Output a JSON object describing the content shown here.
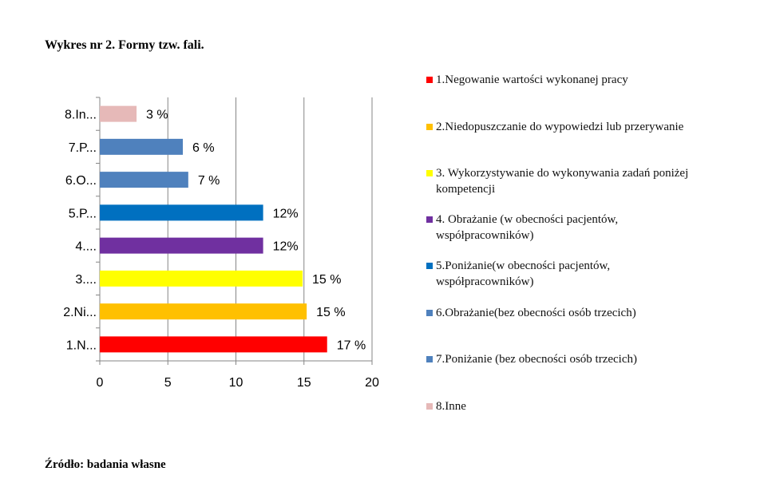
{
  "page": {
    "title": "Wykres nr 2. Formy tzw. fali.",
    "source": "Źródło: badania własne"
  },
  "chart_data": {
    "type": "bar",
    "orientation": "horizontal",
    "categories": [
      "1.N...",
      "2.Ni...",
      "3....",
      "4....",
      "5.P...",
      "6.O...",
      "7.P...",
      "8.In..."
    ],
    "values": [
      16.7,
      15.2,
      14.9,
      12.0,
      12.0,
      6.5,
      6.1,
      2.7
    ],
    "data_labels": [
      "17 %",
      "15 %",
      "15 %",
      "12%",
      "12%",
      "7 %",
      "6 %",
      "3 %"
    ],
    "colors": [
      "#FF0000",
      "#FFC000",
      "#FFFF00",
      "#7030A0",
      "#0070C0",
      "#4F81BD",
      "#4F81BD",
      "#E6B9B8"
    ],
    "xlim": [
      0,
      20
    ],
    "x_ticks": [
      "0",
      "5",
      "10",
      "15",
      "20"
    ],
    "grid": true,
    "legend_position": "right",
    "legend": [
      "1.Negowanie wartości wykonanej pracy",
      "2.Niedopuszczanie do wypowiedzi lub przerywanie",
      "3. Wykorzystywanie do wykonywania zadań poniżej kompetencji",
      "4. Obrażanie (w obecności pacjentów, współpracowników)",
      "5.Poniżanie(w obecności pacjentów, współpracowników)",
      "6.Obrażanie(bez obecności osób trzecich)",
      "7.Poniżanie (bez obecności osób trzecich)",
      "8.Inne"
    ]
  }
}
